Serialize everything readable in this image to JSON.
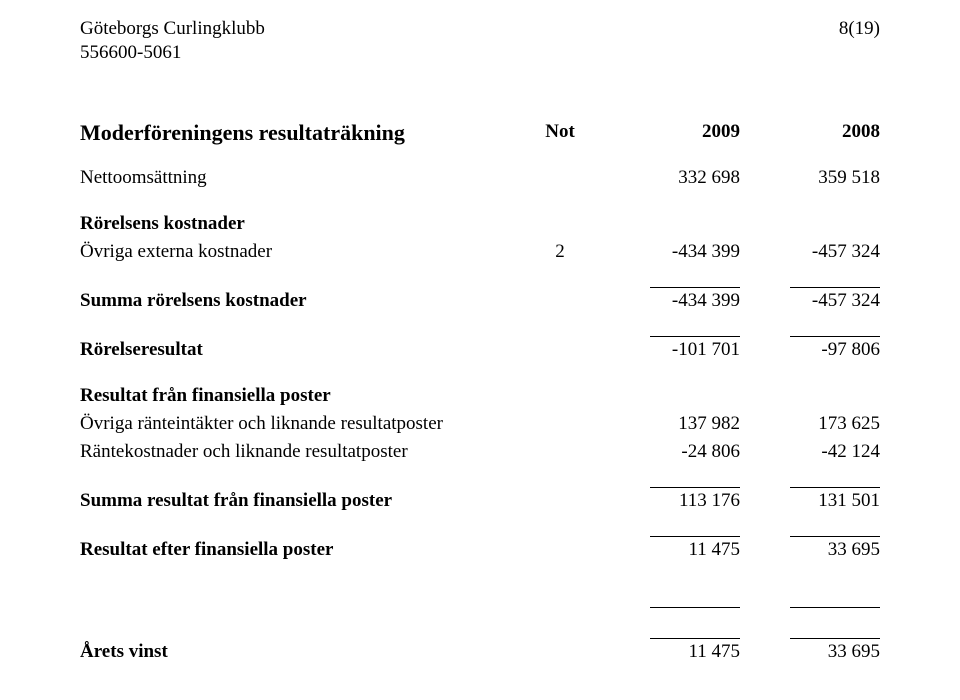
{
  "header": {
    "org_name": "Göteborgs Curlingklubb",
    "org_id": "556600-5061",
    "page_number": "8(19)"
  },
  "title": "Moderföreningens resultaträkning",
  "columns": {
    "not": "Not",
    "year1": "2009",
    "year2": "2008"
  },
  "rows": {
    "net_sales": {
      "label": "Nettoomsättning",
      "y1": "332 698",
      "y2": "359 518"
    },
    "op_costs_header": {
      "label": "Rörelsens kostnader"
    },
    "other_ext_costs": {
      "label": "Övriga externa kostnader",
      "not": "2",
      "y1": "-434 399",
      "y2": "-457 324"
    },
    "sum_op_costs": {
      "label": "Summa rörelsens kostnader",
      "y1": "-434 399",
      "y2": "-457 324"
    },
    "op_result": {
      "label": "Rörelseresultat",
      "y1": "-101 701",
      "y2": "-97 806"
    },
    "fin_items_header": {
      "label": "Resultat från finansiella poster"
    },
    "other_int_income": {
      "label": "Övriga ränteintäkter och liknande resultatposter",
      "y1": "137 982",
      "y2": "173 625"
    },
    "int_expense": {
      "label": "Räntekostnader och liknande resultatposter",
      "y1": "-24 806",
      "y2": "-42 124"
    },
    "sum_fin_items": {
      "label": "Summa resultat från finansiella poster",
      "y1": "113 176",
      "y2": "131 501"
    },
    "result_after_fin": {
      "label": "Resultat efter finansiella poster",
      "y1": "11 475",
      "y2": "33 695"
    },
    "net_profit": {
      "label": "Årets vinst",
      "y1": "11 475",
      "y2": "33 695"
    }
  }
}
